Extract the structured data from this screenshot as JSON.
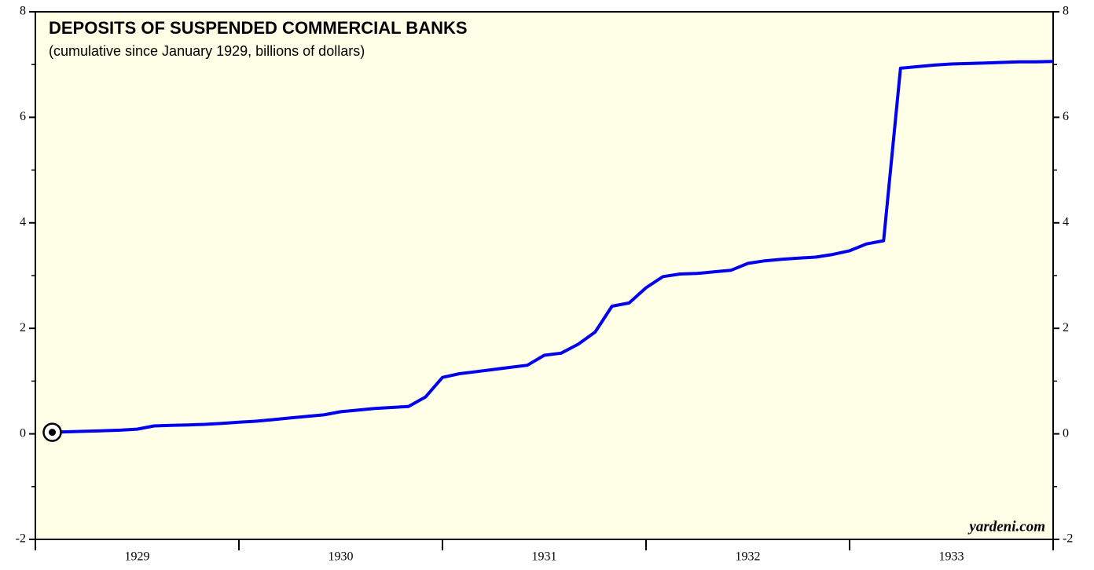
{
  "chart_data": {
    "type": "line",
    "title": "DEPOSITS OF SUSPENDED COMMERCIAL BANKS",
    "subtitle": "(cumulative since January 1929, billions of dollars)",
    "source": "yardeni.com",
    "x": [
      1929.083,
      1929.167,
      1929.25,
      1929.333,
      1929.417,
      1929.5,
      1929.583,
      1929.667,
      1929.75,
      1929.833,
      1929.917,
      1930.0,
      1930.083,
      1930.167,
      1930.25,
      1930.333,
      1930.417,
      1930.5,
      1930.583,
      1930.667,
      1930.75,
      1930.833,
      1930.917,
      1931.0,
      1931.083,
      1931.167,
      1931.25,
      1931.333,
      1931.417,
      1931.5,
      1931.583,
      1931.667,
      1931.75,
      1931.833,
      1931.917,
      1932.0,
      1932.083,
      1932.167,
      1932.25,
      1932.333,
      1932.417,
      1932.5,
      1932.583,
      1932.667,
      1932.75,
      1932.833,
      1932.917,
      1933.0,
      1933.083,
      1933.167,
      1933.25,
      1933.333,
      1933.417,
      1933.5,
      1933.583,
      1933.667,
      1933.75,
      1933.833,
      1933.917,
      1934.0
    ],
    "values": [
      0.03,
      0.04,
      0.05,
      0.06,
      0.07,
      0.09,
      0.15,
      0.16,
      0.17,
      0.18,
      0.2,
      0.22,
      0.24,
      0.27,
      0.3,
      0.33,
      0.36,
      0.42,
      0.45,
      0.48,
      0.5,
      0.52,
      0.7,
      1.07,
      1.14,
      1.18,
      1.22,
      1.26,
      1.3,
      1.49,
      1.53,
      1.7,
      1.93,
      2.42,
      2.48,
      2.77,
      2.98,
      3.03,
      3.04,
      3.07,
      3.1,
      3.23,
      3.28,
      3.31,
      3.33,
      3.35,
      3.4,
      3.47,
      3.6,
      3.66,
      6.93,
      6.96,
      6.99,
      7.01,
      7.02,
      7.03,
      7.04,
      7.05,
      7.05,
      7.06
    ],
    "color": "#0000ee",
    "xlim": [
      1929,
      1934
    ],
    "xticks": [
      1929,
      1930,
      1931,
      1932,
      1933
    ],
    "ylim": [
      -2,
      8
    ],
    "yticks": [
      -2,
      0,
      2,
      4,
      6,
      8
    ],
    "yminor": [
      -1,
      1,
      3,
      5,
      7
    ],
    "background": "#fffee6"
  }
}
